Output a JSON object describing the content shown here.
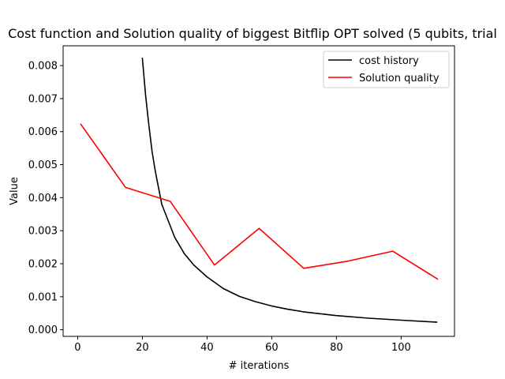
{
  "chart_data": {
    "type": "line",
    "title": "Cost function and Solution quality of biggest Bitflip OPT solved (5 qubits, trial",
    "xlabel": "# iterations",
    "ylabel": "Value",
    "xlim": [
      -4.5,
      116.5
    ],
    "ylim": [
      -0.0002,
      0.0086
    ],
    "xticks": [
      0,
      20,
      40,
      60,
      80,
      100
    ],
    "xtick_labels": [
      "0",
      "20",
      "40",
      "60",
      "80",
      "100"
    ],
    "yticks": [
      0.0,
      0.001,
      0.002,
      0.003,
      0.004,
      0.005,
      0.006,
      0.007,
      0.008
    ],
    "ytick_labels": [
      "0.000",
      "0.001",
      "0.002",
      "0.003",
      "0.004",
      "0.005",
      "0.006",
      "0.007",
      "0.008"
    ],
    "grid": false,
    "legend": {
      "position": "top-right"
    },
    "series": [
      {
        "name": "cost history",
        "color": "#000000",
        "x": [
          20,
          21,
          22,
          23,
          24,
          25,
          26,
          28,
          30,
          33,
          36,
          40,
          45,
          50,
          55,
          60,
          65,
          70,
          80,
          90,
          100,
          111
        ],
        "y": [
          0.00822,
          0.0071,
          0.0062,
          0.0054,
          0.0048,
          0.0043,
          0.0038,
          0.0033,
          0.0028,
          0.0023,
          0.00195,
          0.0016,
          0.00125,
          0.00101,
          0.00085,
          0.00072,
          0.00062,
          0.00054,
          0.00043,
          0.00035,
          0.00029,
          0.00023
        ]
      },
      {
        "name": "Solution quality",
        "color": "#ff0000",
        "x": [
          1,
          14.8,
          28.6,
          42.3,
          56.1,
          69.9,
          83.6,
          97.4,
          111.2
        ],
        "y": [
          0.00622,
          0.00431,
          0.00389,
          0.00196,
          0.00307,
          0.00186,
          0.00208,
          0.00238,
          0.00154
        ]
      }
    ]
  }
}
